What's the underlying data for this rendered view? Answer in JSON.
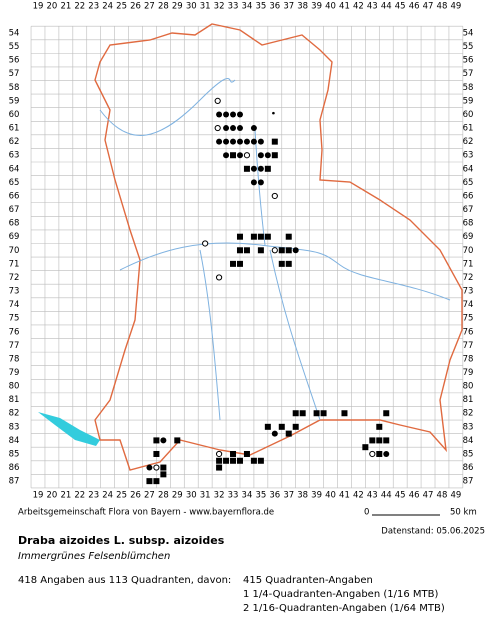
{
  "grid": {
    "columns": [
      19,
      20,
      21,
      22,
      23,
      24,
      25,
      26,
      27,
      28,
      29,
      30,
      31,
      32,
      33,
      34,
      35,
      36,
      37,
      38,
      39,
      40,
      41,
      42,
      43,
      44,
      45,
      46,
      47,
      48,
      49
    ],
    "rows": [
      54,
      55,
      56,
      57,
      58,
      59,
      60,
      61,
      62,
      63,
      64,
      65,
      66,
      67,
      68,
      69,
      70,
      71,
      72,
      73,
      74,
      75,
      76,
      77,
      78,
      79,
      80,
      81,
      82,
      83,
      84,
      85,
      86,
      87
    ]
  },
  "records": [
    {
      "x": 31.9,
      "y": 59,
      "symbol": "ring"
    },
    {
      "x": 32,
      "y": 60,
      "symbol": "dot"
    },
    {
      "x": 32.5,
      "y": 60,
      "symbol": "dot"
    },
    {
      "x": 33,
      "y": 60,
      "symbol": "dot"
    },
    {
      "x": 33.5,
      "y": 60,
      "symbol": "dot"
    },
    {
      "x": 35.9,
      "y": 59.9,
      "symbol": "small"
    },
    {
      "x": 31.9,
      "y": 61,
      "symbol": "ring"
    },
    {
      "x": 32.5,
      "y": 61,
      "symbol": "dot"
    },
    {
      "x": 33,
      "y": 61,
      "symbol": "dot"
    },
    {
      "x": 33.5,
      "y": 61,
      "symbol": "dot"
    },
    {
      "x": 34.5,
      "y": 61,
      "symbol": "dot"
    },
    {
      "x": 32,
      "y": 62,
      "symbol": "dot"
    },
    {
      "x": 32.5,
      "y": 62,
      "symbol": "dot"
    },
    {
      "x": 33,
      "y": 62,
      "symbol": "dot"
    },
    {
      "x": 33.5,
      "y": 62,
      "symbol": "dot"
    },
    {
      "x": 34,
      "y": 62,
      "symbol": "dot"
    },
    {
      "x": 34.5,
      "y": 62,
      "symbol": "dot"
    },
    {
      "x": 35,
      "y": 62,
      "symbol": "dot"
    },
    {
      "x": 36,
      "y": 62,
      "symbol": "square"
    },
    {
      "x": 32.5,
      "y": 63,
      "symbol": "dot"
    },
    {
      "x": 33,
      "y": 63,
      "symbol": "square"
    },
    {
      "x": 33.5,
      "y": 63,
      "symbol": "dot"
    },
    {
      "x": 34,
      "y": 63,
      "symbol": "ring"
    },
    {
      "x": 35,
      "y": 63,
      "symbol": "dot"
    },
    {
      "x": 35.5,
      "y": 63,
      "symbol": "dot"
    },
    {
      "x": 36,
      "y": 63,
      "symbol": "square"
    },
    {
      "x": 34,
      "y": 64,
      "symbol": "square"
    },
    {
      "x": 34.5,
      "y": 64,
      "symbol": "dot"
    },
    {
      "x": 35,
      "y": 64,
      "symbol": "dot"
    },
    {
      "x": 35.5,
      "y": 64,
      "symbol": "square"
    },
    {
      "x": 34.5,
      "y": 65,
      "symbol": "dot"
    },
    {
      "x": 35,
      "y": 65,
      "symbol": "dot"
    },
    {
      "x": 36,
      "y": 66,
      "symbol": "ring"
    },
    {
      "x": 33.5,
      "y": 69,
      "symbol": "square"
    },
    {
      "x": 34.5,
      "y": 69,
      "symbol": "square"
    },
    {
      "x": 35,
      "y": 69,
      "symbol": "square"
    },
    {
      "x": 35.5,
      "y": 69,
      "symbol": "square"
    },
    {
      "x": 37,
      "y": 69,
      "symbol": "square"
    },
    {
      "x": 31,
      "y": 69.5,
      "symbol": "ring"
    },
    {
      "x": 33.5,
      "y": 70,
      "symbol": "square"
    },
    {
      "x": 34,
      "y": 70,
      "symbol": "square"
    },
    {
      "x": 35,
      "y": 70,
      "symbol": "square"
    },
    {
      "x": 36,
      "y": 70,
      "symbol": "ring"
    },
    {
      "x": 36.5,
      "y": 70,
      "symbol": "square"
    },
    {
      "x": 37,
      "y": 70,
      "symbol": "square"
    },
    {
      "x": 37.5,
      "y": 70,
      "symbol": "dot"
    },
    {
      "x": 33,
      "y": 71,
      "symbol": "square"
    },
    {
      "x": 33.5,
      "y": 71,
      "symbol": "square"
    },
    {
      "x": 36.5,
      "y": 71,
      "symbol": "square"
    },
    {
      "x": 37,
      "y": 71,
      "symbol": "square"
    },
    {
      "x": 32,
      "y": 72,
      "symbol": "ring"
    },
    {
      "x": 39,
      "y": 82,
      "symbol": "square"
    },
    {
      "x": 39.5,
      "y": 82,
      "symbol": "square"
    },
    {
      "x": 41,
      "y": 82,
      "symbol": "square"
    },
    {
      "x": 37.5,
      "y": 82,
      "symbol": "square"
    },
    {
      "x": 38,
      "y": 82,
      "symbol": "square"
    },
    {
      "x": 44,
      "y": 82,
      "symbol": "square"
    },
    {
      "x": 35.5,
      "y": 83,
      "symbol": "square"
    },
    {
      "x": 36.5,
      "y": 83,
      "symbol": "square"
    },
    {
      "x": 37.5,
      "y": 83,
      "symbol": "square"
    },
    {
      "x": 43.5,
      "y": 83,
      "symbol": "square"
    },
    {
      "x": 36,
      "y": 83.5,
      "symbol": "dot"
    },
    {
      "x": 37,
      "y": 83.5,
      "symbol": "square"
    },
    {
      "x": 27.5,
      "y": 84,
      "symbol": "square"
    },
    {
      "x": 28,
      "y": 84,
      "symbol": "dot"
    },
    {
      "x": 29,
      "y": 84,
      "symbol": "square"
    },
    {
      "x": 43,
      "y": 84,
      "symbol": "square"
    },
    {
      "x": 43.5,
      "y": 84,
      "symbol": "square"
    },
    {
      "x": 44,
      "y": 84,
      "symbol": "square"
    },
    {
      "x": 42.5,
      "y": 84.5,
      "symbol": "square"
    },
    {
      "x": 43,
      "y": 85,
      "symbol": "ring"
    },
    {
      "x": 43.5,
      "y": 85,
      "symbol": "square"
    },
    {
      "x": 44,
      "y": 85,
      "symbol": "dot"
    },
    {
      "x": 32,
      "y": 85,
      "symbol": "ring"
    },
    {
      "x": 33,
      "y": 85,
      "symbol": "square"
    },
    {
      "x": 34,
      "y": 85,
      "symbol": "square"
    },
    {
      "x": 27.5,
      "y": 85,
      "symbol": "square"
    },
    {
      "x": 32,
      "y": 85.5,
      "symbol": "square"
    },
    {
      "x": 32.5,
      "y": 85.5,
      "symbol": "square"
    },
    {
      "x": 33,
      "y": 85.5,
      "symbol": "square"
    },
    {
      "x": 33.5,
      "y": 85.5,
      "symbol": "square"
    },
    {
      "x": 34.5,
      "y": 85.5,
      "symbol": "square"
    },
    {
      "x": 35,
      "y": 85.5,
      "symbol": "square"
    },
    {
      "x": 32,
      "y": 86,
      "symbol": "square"
    },
    {
      "x": 27,
      "y": 86,
      "symbol": "dot"
    },
    {
      "x": 27.5,
      "y": 86,
      "symbol": "ring"
    },
    {
      "x": 28,
      "y": 86,
      "symbol": "square"
    },
    {
      "x": 28,
      "y": 86.5,
      "symbol": "square"
    },
    {
      "x": 27,
      "y": 87,
      "symbol": "square"
    },
    {
      "x": 27.5,
      "y": 87,
      "symbol": "square"
    }
  ],
  "footer": {
    "credit": "Arbeitsgemeinschaft Flora von Bayern - www.bayernflora.de",
    "scale_start": "0",
    "scale_end": "50 km",
    "date": "Datenstand: 05.06.2025"
  },
  "species": {
    "name": "Draba aizoides L. subsp. aizoides",
    "common_name": "Immergrünes Felsenblümchen"
  },
  "summary": {
    "total": "418 Angaben aus 113 Quadranten, davon:",
    "lines": [
      "415 Quadranten-Angaben",
      "1 1/4-Quadranten-Angaben (1/16 MTB)",
      "2 1/16-Quadranten-Angaben (1/64 MTB)"
    ]
  }
}
